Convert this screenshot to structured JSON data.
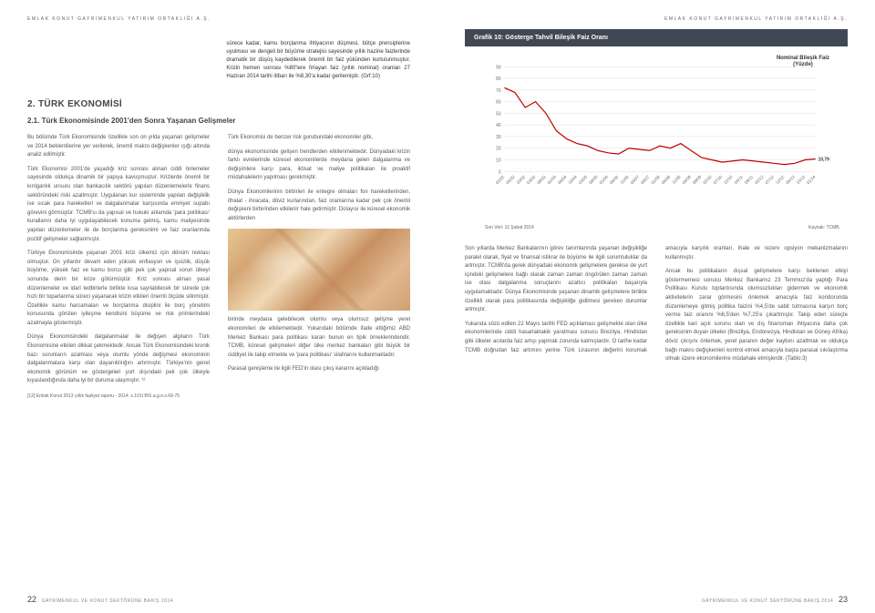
{
  "header": {
    "left": "EMLAK KONUT GAYRİMENKUL YATIRIM ORTAKLIĞI A.Ş.",
    "right": "EMLAK KONUT GAYRİMENKUL YATIRIM ORTAKLIĞI A.Ş."
  },
  "intro": "sürece kadar, kamu borçlanma ihtiyacının düşmesi, bütçe prensiplerine uyulması ve dengeli bir büyüme stratejisi sayesinde yıllık hazine faizlerinde dramatik bir düşüş kaydedilerek önemli bir faiz yükünden kurtulunmuştur. Krizin hemen sonrası %80'lere fırlayan faiz (yıllık nominal) oranları 27 Haziran 2014 tarihi itibarı ile %8,30'a kadar gerilemiştir. (Grf:10)",
  "section_title": "2. TÜRK EKONOMİSİ",
  "subsection_title": "2.1. Türk Ekonomisinde 2001'den Sonra Yaşanan Gelişmeler",
  "left_paras": [
    "Bu bölümde Türk Ekonomisinde özellikle son on yılda yaşanan gelişmeler ve 2014 beklentilerine yer verilerek, önemli makro değişkenler ışığı altında analiz edilmiştir.",
    "Türk Ekonomisi 2001'de yaşadığı kriz sonrası alınan ciddi önlemeler sayesinde oldukça dinamik bir yapıya kavuşmuştur. Krizlerde önemli bir kırılganlık unsuru olan bankacılık sektörü yapılan düzenlemelerle finans sektöründeki riski azaltmıştır. Uygulanan kur sisteminde yapılan değişiklik ise sıcak para hareketleri ve dalgalanmalar karşısında emniyet supabı görevini görmüştür. TCMB'sı da yapısal ve hukuki anlamda 'para politikası' kurallarını daha iyi uygulayabilecek konuma gelmiş, kamu maliyesinde yapılan düzenlemeler ile de borçlanma gereksinimi ve faiz oranlarında pozitif gelişmeler sağlanmıştır.",
    "Türkiye Ekonomisinde yaşanan 2001 krizi ülkemiz için dönüm noktası olmuştur. On yıllardır devam eden yüksek enflasyon ve işsizlik, düşük büyüme, yüksek faiz ve kamu borcu gibi pek çok yapısal sorun ülkeyi sonunda derin bir krize götürmüştür. Kriz sonrası alınan yasal düzenlemeler ve idari tedbirlerle birlikte kısa sayılabilecek bir sürede çok hızlı bir toparlanma süreci yaşanarak krizin etkileri önemli ölçüde silinmiştir. Özellikle kamu harcamaları ve borçlanma disiplini ile borç yönetimi konusunda görülen iyileşme kendisini büyüme ve risk primlerindeki azalmayla göstermiştir.",
    "Dünya Ekonomisindeki dalgalanmalar ile değişen algıların Türk Ekonomisine etkileri dikkat çekmektedir. Ancak Türk Ekonomisindeki kronik bazı sorunların azalması veya olumlu yönde değişmesi ekonominin dalgalanmalara karşı olan dayanıklılığını artırmıştır. Türkiye'nin genel ekonomik görünüm ve göstergeleri yurt dışındaki pek çok ülkeyle kıyaslandığında daha iyi bir duruma ulaşmıştır. ¹²",
    "Türk Ekonomisi de benzer risk gurubundaki ekonomiler gibi,",
    "dünya ekonomisinde gelişen trendlerden etkilenmektedir. Dünyadaki krizin farklı evrelerinde küresel ekonomilerde meydana gelen dalgalanma ve değişimlere karşı para, iktisat ve maliye politikaları ile proaktif müdahalelerin yapılması gerekmiştir.",
    "Dünya Ekonomilerinin birbirleri ile entegre olmaları fon hareketlerinden, ithalat - ihracata, döviz kurlarından, faiz oranlarına kadar pek çok önemli değişkeni birbirinden etkilenir hale getirmiştir. Dolayısı ile küresel ekonomik aktörlerden",
    "birinde meydana gelebilecek olumlu veya olumsuz gelişme yerel ekonomileri de etkilemektedir. Yukarıdaki bölümde ifade ettiğimiz ABD Merkez Bankası para politikası kararı bunun en tipik örneklerindendir. TCMB, küresel gelişmeleri diğer ülke merkez bankaları gibi büyük bir ciddiyet ile takip etmekte ve 'para politikası' silahlarını kullanmaktadır.",
    "Parasal genişleme ile ilgili FED'in olası çıkış kararını açıkladığı"
  ],
  "footnote": "[12] Emlak Konut 2013 yıllık faaliyet raporu - 2014, s.101t BIS.a.g.e.s.69-75",
  "page_left_num": "22",
  "page_right_num": "23",
  "footer_text": "GAYRİMENKUL VE KONUT SEKTÖRÜNE BAKIŞ 2014",
  "chart": {
    "type": "line",
    "box_title": "Grafik 10: Gösterge Tahvil Bileşik Faiz Oranı",
    "title_line1": "Nominal Bileşik Faiz",
    "title_line2": "(Yüzde)",
    "ylim": [
      0,
      90
    ],
    "ytick_step": 10,
    "yticks": [
      0,
      10,
      20,
      30,
      40,
      50,
      60,
      70,
      80,
      90
    ],
    "x_categories": [
      "01/02",
      "05/02",
      "10/02",
      "03/03",
      "08/03",
      "01/04",
      "06/04",
      "10/04",
      "03/05",
      "08/05",
      "01/06",
      "06/06",
      "11/06",
      "04/07",
      "09/07",
      "01/08",
      "06/08",
      "11/08",
      "04/09",
      "09/09",
      "02/10",
      "07/10",
      "12/10",
      "04/11",
      "09/11",
      "02/12",
      "07/12",
      "12/12",
      "05/13",
      "10/13",
      "01/14"
    ],
    "values": [
      72,
      68,
      55,
      60,
      50,
      35,
      28,
      24,
      22,
      18,
      16,
      15,
      20,
      19,
      18,
      22,
      20,
      24,
      18,
      12,
      10,
      8,
      9,
      10,
      9,
      8,
      7,
      6,
      7,
      10,
      10.79
    ],
    "end_label": "10,79",
    "line_color": "#c00000",
    "grid_color": "#dddddd",
    "background_color": "#ffffff",
    "axis_fontsize": 5,
    "title_fontsize": 6,
    "source_left": "Son Veri: 11 Şubat 2014",
    "source_right": "Kaynak: TCMB."
  },
  "right_paras": [
    "Son yıllarda Merkez Bankalarının görev tanımlarında yaşanan değişikliğe paralel olarak, fiyat ve finansal istikrar ile büyüme ile ilgili sorumluluklar da artmıştır. TCMB'da gerek dünyadaki ekonomik gelişmelere gerekse de yurt içindeki gelişmelere bağlı olarak zaman zaman öngörülen zaman zaman ise olası dalgalanma sonuçlarını azaltıcı politikaları başarıyla uygulamaktadır. Dünya Ekonomisinde yaşanan dinamik gelişmelere birlikte özellikli olarak para politikasında değişikliğe gidilmesi gereken durumlar artmıştır.",
    "Yukarıda sözü edilen 22 Mayıs tarihli FED açıklaması gelişmekte olan ülke ekonomilerinde ciddi hasarlaktakik yaratması sonucu Brezilya, Hindistan gibi ülkeler acılarda faiz artışı yapmak zorunda kalmışlardır. O tarihe kadar TCMB doğrudan faiz artımını yerine Türk Lirasının değerini korumak amacıyla karşılık oranları, ihale ve rezerv opsiyon mekanizmalarını kullanmıştır.",
    "Ancak bu politikaların dışsal gelişmelere karşı beklenen etkiyi göstermemesi sonucu Merkez Bankamız 23 Temmuz'da yaptığı Para Politikası Kurulu toplantısında olumsuzlukları gidermek ve ekonomik aktivitelerin zarar görmesini önlemek amacıyla faiz koridorunda düzenlemeye gitmiş politika faizini %4,5'de sabit tutmasına karşın borç verme faiz oranını %6,5'den %7,25'e çıkartmıştır. Takip eden süreçte özellikle kari açık sorunu olan ve dış finansman ihtiyacına daha çok gereksinim duyan ülkeler (Brezilya, Endonezya, Hindistan ve Güney Afrika) döviz çıkışını önlemek, yerel paranın değer kaybını azaltmak ve oldukça bağlı makro değişkenleri kontrol etmek amacıyla başta parasal sıkılaştırma olmak üzere ekonomilerine müdahale etmişlerdir. (Tablo:3)"
  ]
}
